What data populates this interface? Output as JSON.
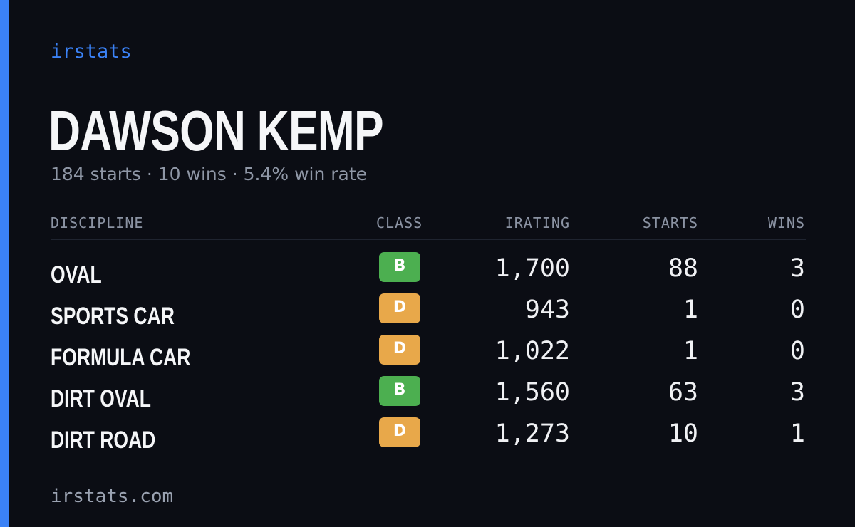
{
  "brand": "irstats",
  "driver": {
    "name": "DAWSON KEMP",
    "summary": "184 starts · 10 wins · 5.4% win rate"
  },
  "table": {
    "headers": {
      "discipline": "DISCIPLINE",
      "class": "CLASS",
      "irating": "IRATING",
      "starts": "STARTS",
      "wins": "WINS"
    },
    "rows": [
      {
        "discipline": "OVAL",
        "class": "B",
        "class_color": "#4caf50",
        "irating": "1,700",
        "starts": "88",
        "wins": "3"
      },
      {
        "discipline": "SPORTS CAR",
        "class": "D",
        "class_color": "#e8a84a",
        "irating": "943",
        "starts": "1",
        "wins": "0"
      },
      {
        "discipline": "FORMULA CAR",
        "class": "D",
        "class_color": "#e8a84a",
        "irating": "1,022",
        "starts": "1",
        "wins": "0"
      },
      {
        "discipline": "DIRT OVAL",
        "class": "B",
        "class_color": "#4caf50",
        "irating": "1,560",
        "starts": "63",
        "wins": "3"
      },
      {
        "discipline": "DIRT ROAD",
        "class": "D",
        "class_color": "#e8a84a",
        "irating": "1,273",
        "starts": "10",
        "wins": "1"
      }
    ]
  },
  "footer": "irstats.com",
  "colors": {
    "background": "#0b0d14",
    "accent": "#3b82f6",
    "class_b": "#4caf50",
    "class_d": "#e8a84a"
  }
}
